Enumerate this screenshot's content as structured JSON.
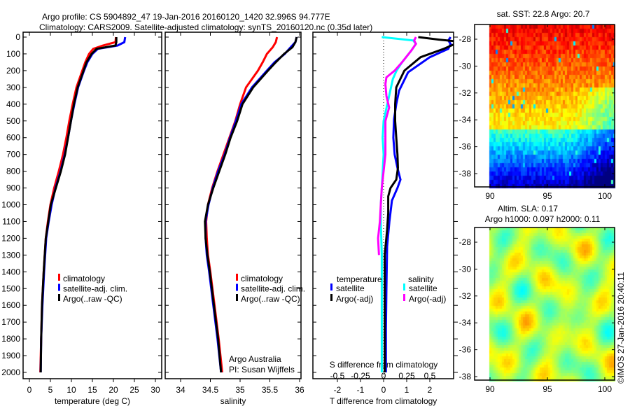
{
  "title": {
    "line1": "Argo profile: CS 5904892_47 19-Jan-2016 20160120_1420 32.996S 94.777E",
    "line2": "Climatology: CARS2009. Satellite-adjusted climatology: synTS_20160120.nc (0.35d later)"
  },
  "credit": "©IMOS 27-Jan-2016 20:40:11",
  "attribution": {
    "line1": "Argo Australia",
    "line2": "PI: Susan Wijffels"
  },
  "colors": {
    "climatology": "#ff0000",
    "satellite": "#0000ff",
    "argo": "#000000",
    "sal_satellite": "#00ffff",
    "sal_argo": "#ff00ff"
  },
  "chart_data": [
    {
      "type": "line",
      "name": "temperature-profile",
      "xlabel": "temperature (deg C)",
      "ylabel": "",
      "xlim": [
        -1.5,
        31.5
      ],
      "ylim": [
        2050,
        -30
      ],
      "xticks": [
        "0",
        "5",
        "10",
        "15",
        "20",
        "25",
        "30"
      ],
      "yticks": [
        "0",
        "100",
        "200",
        "300",
        "400",
        "500",
        "600",
        "700",
        "800",
        "900",
        "1000",
        "1100",
        "1200",
        "1300",
        "1400",
        "1500",
        "1600",
        "1700",
        "1800",
        "1900",
        "2000"
      ],
      "legend": [
        "climatology",
        "satellite-adj. clim.",
        "Argo(..raw -QC)"
      ],
      "series": [
        {
          "name": "climatology",
          "color": "#ff0000",
          "depth": [
            0,
            30,
            50,
            70,
            100,
            150,
            200,
            300,
            400,
            500,
            600,
            700,
            800,
            900,
            1000,
            1100,
            1200,
            1400,
            1600,
            1800,
            2000
          ],
          "values": [
            20.6,
            20.5,
            17.5,
            15.2,
            14.2,
            13.3,
            12.6,
            11.2,
            10.3,
            9.5,
            8.8,
            8.0,
            7.0,
            5.9,
            5.0,
            4.4,
            3.9,
            3.4,
            3.0,
            2.8,
            2.6
          ]
        },
        {
          "name": "satellite-adj. clim.",
          "color": "#0000ff",
          "depth": [
            0,
            30,
            50,
            70,
            100,
            150,
            200,
            300,
            400,
            500,
            600,
            700,
            800,
            900,
            1000,
            1100,
            1200,
            1400,
            1600,
            1800,
            2000
          ],
          "values": [
            22.8,
            22.6,
            21.0,
            16.3,
            15.0,
            13.8,
            13.0,
            11.6,
            10.7,
            9.9,
            9.2,
            8.4,
            7.4,
            6.2,
            5.3,
            4.6,
            4.0,
            3.5,
            3.1,
            2.8,
            2.7
          ]
        },
        {
          "name": "Argo(..raw -QC)",
          "color": "#000000",
          "depth": [
            0,
            30,
            50,
            70,
            100,
            150,
            200,
            300,
            400,
            500,
            600,
            700,
            800,
            900,
            1000,
            1100,
            1200,
            1400,
            1600,
            1800,
            2000
          ],
          "values": [
            20.7,
            20.7,
            20.5,
            16.0,
            14.8,
            13.6,
            12.9,
            11.5,
            10.6,
            9.9,
            9.2,
            8.5,
            7.5,
            6.3,
            5.1,
            4.5,
            3.9,
            3.4,
            3.0,
            2.8,
            2.7
          ]
        }
      ]
    },
    {
      "type": "line",
      "name": "salinity-profile",
      "xlabel": "salinity",
      "xlim": [
        33.72,
        36.02
      ],
      "ylim": [
        2050,
        -30
      ],
      "xticks": [
        "34",
        "34.5",
        "35",
        "35.5",
        "36"
      ],
      "legend": [
        "climatology",
        "satellite-adj. clim.",
        "Argo(..raw -QC)"
      ],
      "series": [
        {
          "name": "climatology",
          "color": "#ff0000",
          "depth": [
            0,
            30,
            60,
            100,
            150,
            200,
            300,
            400,
            500,
            600,
            700,
            800,
            900,
            1000,
            1100,
            1200,
            1300,
            1400,
            1600,
            1800,
            2000
          ],
          "values": [
            35.62,
            35.6,
            35.55,
            35.45,
            35.38,
            35.3,
            35.1,
            35.0,
            34.92,
            34.82,
            34.72,
            34.62,
            34.53,
            34.46,
            34.43,
            34.44,
            34.46,
            34.5,
            34.57,
            34.64,
            34.7
          ]
        },
        {
          "name": "satellite-adj. clim.",
          "color": "#0000ff",
          "depth": [
            0,
            30,
            60,
            100,
            150,
            200,
            300,
            400,
            500,
            600,
            700,
            800,
            900,
            1000,
            1100,
            1200,
            1300,
            1400,
            1600,
            1800,
            2000
          ],
          "values": [
            35.95,
            35.93,
            35.85,
            35.75,
            35.58,
            35.45,
            35.2,
            35.02,
            34.93,
            34.83,
            34.74,
            34.63,
            34.54,
            34.47,
            34.42,
            34.42,
            34.44,
            34.48,
            34.55,
            34.62,
            34.68
          ]
        },
        {
          "name": "Argo(..raw -QC)",
          "color": "#000000",
          "depth": [
            0,
            30,
            60,
            100,
            150,
            200,
            300,
            400,
            500,
            600,
            700,
            800,
            900,
            1000,
            1100,
            1200,
            1300,
            1400,
            1600,
            1800,
            2000
          ],
          "values": [
            35.95,
            35.93,
            35.88,
            35.74,
            35.6,
            35.47,
            35.22,
            35.04,
            34.95,
            34.84,
            34.75,
            34.65,
            34.55,
            34.46,
            34.41,
            34.42,
            34.45,
            34.49,
            34.56,
            34.63,
            34.68
          ]
        }
      ]
    },
    {
      "type": "line",
      "name": "difference-profile",
      "xlabel": "T difference from climatology",
      "x2label": "S difference from climatology",
      "xlim": [
        -3.1,
        3.1
      ],
      "x2lim": [
        -0.78,
        0.78
      ],
      "ylim": [
        2050,
        -30
      ],
      "xticks": [
        "-2",
        "-1",
        "0",
        "1",
        "2"
      ],
      "x2ticks": [
        "-0.5",
        "-0.25",
        "0",
        "0.25",
        "0.5"
      ],
      "legend_headers": [
        "temperature",
        "salinity"
      ],
      "legend": [
        "satellite",
        "Argo(-adj)",
        "satellite",
        "Argo(-adj)"
      ],
      "series": [
        {
          "name": "T satellite",
          "axis": "T",
          "color": "#0000ff",
          "depth": [
            0,
            20,
            40,
            70,
            120,
            210,
            320,
            400,
            490,
            600,
            700,
            780,
            850,
            900,
            975,
            1100,
            1250,
            1500,
            1750,
            2000
          ],
          "values": [
            2.9,
            2.8,
            2.9,
            2.8,
            2.0,
            1.06,
            0.67,
            0.55,
            0.45,
            0.42,
            0.48,
            0.6,
            0.73,
            0.6,
            0.36,
            0.25,
            0.15,
            0.12,
            0.1,
            0.1
          ]
        },
        {
          "name": "T Argo(-adj)",
          "axis": "T",
          "color": "#000000",
          "depth": [
            0,
            15,
            25,
            40,
            70,
            120,
            200,
            300,
            400,
            500,
            600,
            700,
            780,
            850,
            900,
            950,
            1050,
            1150,
            1300,
            1600,
            2000
          ],
          "values": [
            1.5,
            2.4,
            3.1,
            3.1,
            2.6,
            1.6,
            0.9,
            0.55,
            0.5,
            0.5,
            0.55,
            0.6,
            0.62,
            0.55,
            0.3,
            0.2,
            0.2,
            0.15,
            0.05,
            0.05,
            0.05
          ]
        },
        {
          "name": "S satellite",
          "axis": "S",
          "color": "#00ffff",
          "depth": [
            0,
            20,
            40,
            80,
            150,
            200,
            250,
            300,
            400,
            500,
            600,
            700,
            800,
            900,
            1000,
            1100,
            1300,
            1600,
            2000
          ],
          "values": [
            -0.02,
            0.32,
            0.35,
            0.3,
            0.2,
            0.14,
            0.1,
            0.08,
            0.04,
            0.0,
            -0.01,
            0.0,
            -0.01,
            -0.02,
            -0.03,
            -0.03,
            -0.02,
            -0.02,
            -0.02
          ]
        },
        {
          "name": "S Argo(-adj)",
          "axis": "S",
          "color": "#ff00ff",
          "depth": [
            0,
            20,
            40,
            80,
            150,
            200,
            240,
            280,
            350,
            420,
            500,
            600,
            700,
            800,
            900,
            1000,
            1100,
            1200,
            1300
          ],
          "values": [
            0.35,
            0.33,
            0.35,
            0.3,
            0.2,
            0.12,
            0.03,
            0.02,
            0.03,
            0.06,
            0.02,
            0.02,
            0.02,
            0.0,
            -0.02,
            -0.03,
            -0.04,
            -0.06,
            -0.05
          ]
        }
      ]
    },
    {
      "type": "heatmap",
      "name": "sst-map",
      "title": "sat. SST: 22.8 Argo: 20.7",
      "xlim": [
        88.8,
        100.9
      ],
      "ylim": [
        -38.9,
        -27
      ],
      "xticks": [
        "90",
        "95",
        "100"
      ],
      "yticks": [
        "-28",
        "-30",
        "-32",
        "-34",
        "-36",
        "-38"
      ],
      "colormap": "jet"
    },
    {
      "type": "heatmap",
      "name": "sla-map",
      "title_line1": "Altim. SLA: 0.17",
      "title_line2": "Argo h1000: 0.097 h2000: 0.11",
      "xlim": [
        88.8,
        100.9
      ],
      "ylim": [
        -38.9,
        -27
      ],
      "xticks": [
        "90",
        "95",
        "100"
      ],
      "yticks": [
        "-28",
        "-30",
        "-32",
        "-34",
        "-36",
        "-38"
      ],
      "colormap": "jet"
    }
  ]
}
